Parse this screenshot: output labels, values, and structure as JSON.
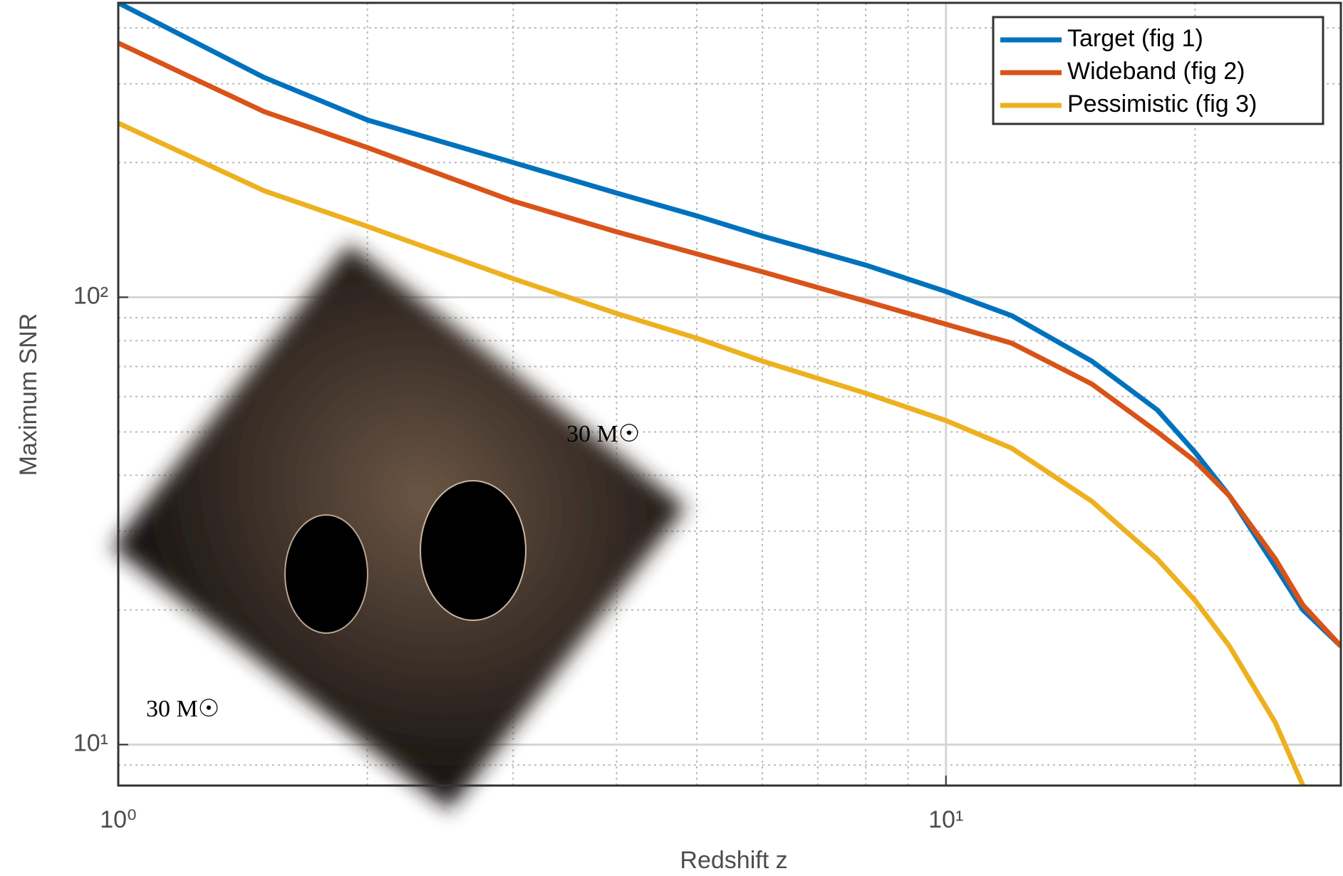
{
  "chart_data": {
    "type": "line",
    "x": [
      1,
      1.5,
      2,
      3,
      4,
      5,
      6,
      8,
      10,
      12,
      15,
      18,
      20,
      22,
      25,
      27,
      30
    ],
    "series": [
      {
        "name": "Target (fig 1)",
        "color": "#0072bd",
        "values": [
          455,
          310,
          249,
          200,
          171,
          152,
          137,
          118,
          103,
          91,
          72,
          56,
          45,
          36,
          25,
          20,
          16.6
        ]
      },
      {
        "name": "Wideband (fig 2)",
        "color": "#d95319",
        "values": [
          370,
          260,
          216,
          164,
          140,
          125,
          114,
          98,
          87,
          79,
          64,
          50,
          43,
          36,
          26,
          20.5,
          16.6
        ]
      },
      {
        "name": "Pessimistic (fig 3)",
        "color": "#edb120",
        "values": [
          245,
          173,
          144,
          110,
          92,
          81,
          72,
          61,
          53,
          46,
          35,
          26,
          21,
          16.6,
          11.2,
          8.1,
          null
        ]
      }
    ],
    "xlabel": "Redshift z",
    "ylabel": "Maximum SNR",
    "xscale": "log",
    "yscale": "log",
    "xlim": [
      1,
      30
    ],
    "ylim": [
      8.1,
      455
    ],
    "xticks": [
      {
        "value": 1,
        "label": "10⁰"
      },
      {
        "value": 10,
        "label": "10¹"
      }
    ],
    "yticks": [
      {
        "value": 10,
        "label": "10¹"
      },
      {
        "value": 100,
        "label": "10²"
      }
    ],
    "xminorticks": [
      2,
      3,
      4,
      5,
      6,
      7,
      8,
      9,
      20
    ],
    "yminorticks": [
      9,
      20,
      30,
      40,
      50,
      60,
      70,
      80,
      90,
      200,
      300,
      400
    ],
    "grid": true,
    "legend": "upper right",
    "annotations": [
      "30 M☉",
      "30 M☉"
    ]
  }
}
